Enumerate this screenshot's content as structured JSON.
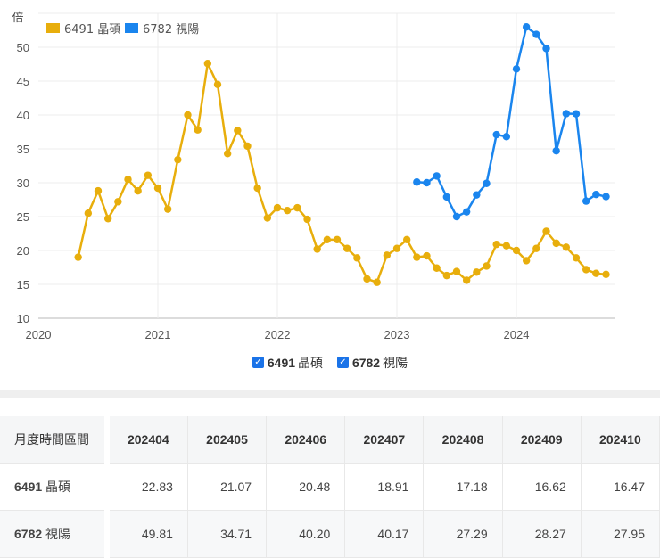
{
  "chart_data": {
    "type": "line",
    "title": "",
    "ylabel": "倍",
    "xlabel": "",
    "ylim": [
      10,
      53
    ],
    "yticks": [
      10,
      15,
      20,
      25,
      30,
      35,
      40,
      45,
      50
    ],
    "xticks": [
      "2020",
      "2021",
      "2022",
      "2023",
      "2024"
    ],
    "grid": true,
    "legend_position": "top-left",
    "series": [
      {
        "name": "6491 晶碩",
        "color": "#e8ae0c",
        "start": "2020-05",
        "values": [
          19.0,
          25.5,
          28.8,
          24.7,
          27.2,
          30.5,
          28.8,
          31.1,
          29.2,
          26.1,
          33.4,
          40.0,
          37.8,
          47.6,
          44.5,
          34.3,
          37.7,
          35.4,
          29.2,
          24.8,
          26.3,
          25.9,
          26.3,
          24.6,
          20.2,
          21.6,
          21.6,
          20.3,
          18.9,
          15.8,
          15.3,
          19.3,
          20.3,
          21.6,
          19.0,
          19.2,
          17.4,
          16.3,
          16.9,
          15.6,
          16.8,
          17.7,
          20.9,
          20.7,
          20.0,
          18.5,
          20.3,
          22.83,
          21.07,
          20.48,
          18.91,
          17.18,
          16.62,
          16.47
        ]
      },
      {
        "name": "6782 視陽",
        "color": "#1a85ee",
        "start": "2023-03",
        "values": [
          30.1,
          30.0,
          31.0,
          27.9,
          25.0,
          25.7,
          28.2,
          29.9,
          37.1,
          36.8,
          46.8,
          53.0,
          51.9,
          49.81,
          34.71,
          40.2,
          40.17,
          27.29,
          28.27,
          27.95
        ]
      }
    ]
  },
  "legend": {
    "items": [
      {
        "code": "6491",
        "name": "晶碩",
        "label": "6491 晶碩"
      },
      {
        "code": "6782",
        "name": "視陽",
        "label": "6782 視陽"
      }
    ]
  },
  "table": {
    "header_label": "月度時間區間",
    "columns": [
      "202404",
      "202405",
      "202406",
      "202407",
      "202408",
      "202409",
      "202410"
    ],
    "rows": [
      {
        "code": "6491",
        "name": "晶碩",
        "values": [
          "22.83",
          "21.07",
          "20.48",
          "18.91",
          "17.18",
          "16.62",
          "16.47"
        ]
      },
      {
        "code": "6782",
        "name": "視陽",
        "values": [
          "49.81",
          "34.71",
          "40.20",
          "40.17",
          "27.29",
          "28.27",
          "27.95"
        ]
      }
    ]
  }
}
